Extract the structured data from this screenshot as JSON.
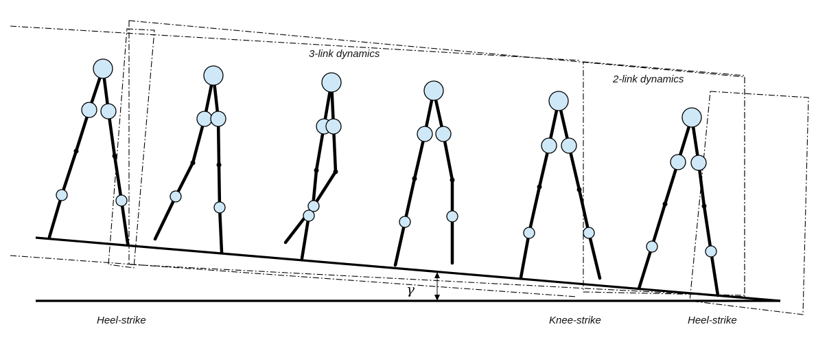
{
  "labels": {
    "three_link": "3-link dynamics",
    "two_link": "2-link dynamics",
    "heel_strike_left": "Heel-strike",
    "knee_strike": "Knee-strike",
    "heel_strike_right": "Heel-strike",
    "slope_angle": "γ"
  },
  "colors": {
    "mass_fill": "#cfe8f8",
    "line": "#000000"
  }
}
